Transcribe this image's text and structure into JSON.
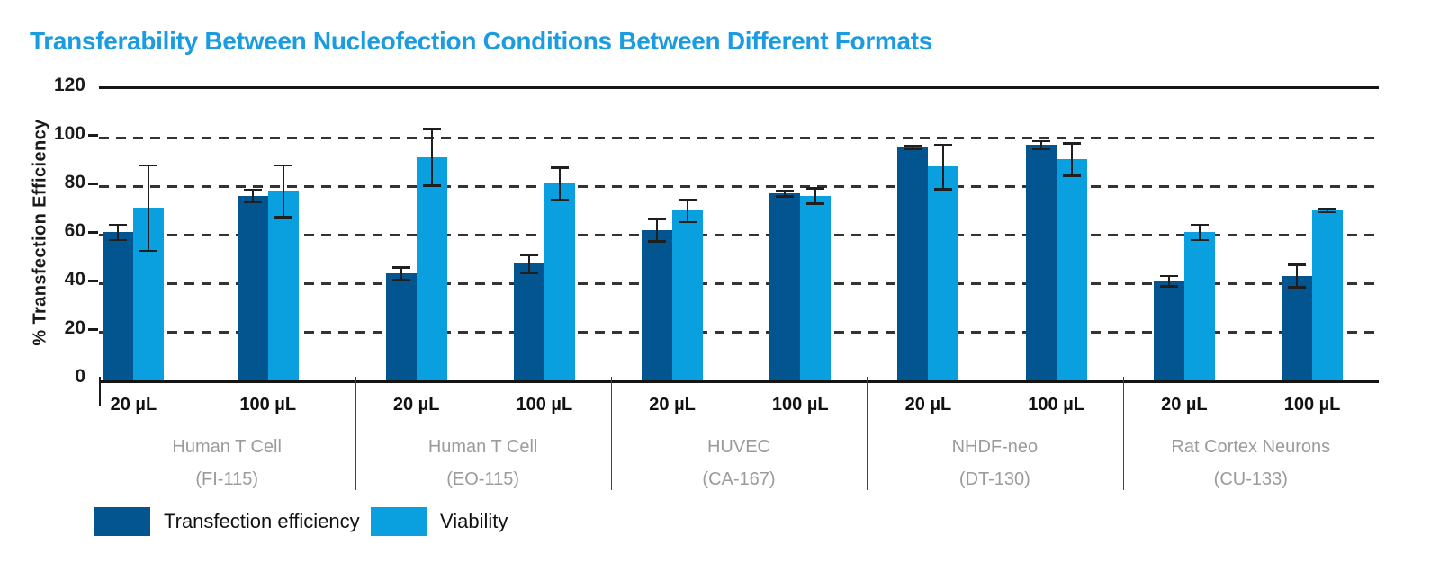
{
  "colors": {
    "title": "#1B9CE0",
    "efficiency": "#02558E",
    "viability": "#0AA0E0",
    "axis": "#141414",
    "grid": "#333333",
    "group_label": "#9B9B9B"
  },
  "chart_data": {
    "type": "bar",
    "title": "Transferability Between Nucleofection Conditions Between Different Formats",
    "ylabel": "% Transfection Efficiency",
    "xlabel": "",
    "ylim": [
      0,
      120
    ],
    "yticks": [
      0,
      20,
      40,
      60,
      80,
      100,
      120
    ],
    "grid": "horizontal-dashed",
    "error_bars": true,
    "legend": {
      "position": "bottom-left",
      "entries": [
        {
          "label": "Transfection efficiency",
          "color": "#02558E",
          "series_key": "efficiency"
        },
        {
          "label": "Viability",
          "color": "#0AA0E0",
          "series_key": "viability"
        }
      ]
    },
    "groups": [
      {
        "label": "Human T Cell",
        "code": "(FI-115)",
        "conditions": [
          {
            "label": "20 µL",
            "efficiency": {
              "value": 61,
              "err": 3.5
            },
            "viability": {
              "value": 71,
              "err": 18
            }
          },
          {
            "label": "100 µL",
            "efficiency": {
              "value": 76,
              "err": 3
            },
            "viability": {
              "value": 78,
              "err": 11
            }
          }
        ]
      },
      {
        "label": "Human T Cell",
        "code": "(EO-115)",
        "conditions": [
          {
            "label": "20 µL",
            "efficiency": {
              "value": 44,
              "err": 3
            },
            "viability": {
              "value": 92,
              "err": 12
            }
          },
          {
            "label": "100 µL",
            "efficiency": {
              "value": 48,
              "err": 4
            },
            "viability": {
              "value": 81,
              "err": 7
            }
          }
        ]
      },
      {
        "label": "HUVEC",
        "code": "(CA-167)",
        "conditions": [
          {
            "label": "20 µL",
            "efficiency": {
              "value": 62,
              "err": 5
            },
            "viability": {
              "value": 70,
              "err": 5
            }
          },
          {
            "label": "100 µL",
            "efficiency": {
              "value": 77,
              "err": 1.5
            },
            "viability": {
              "value": 76,
              "err": 3.5
            }
          }
        ]
      },
      {
        "label": "NHDF-neo",
        "code": "(DT-130)",
        "conditions": [
          {
            "label": "20 µL",
            "efficiency": {
              "value": 96,
              "err": 1
            },
            "viability": {
              "value": 88,
              "err": 9.5
            }
          },
          {
            "label": "100 µL",
            "efficiency": {
              "value": 97,
              "err": 2
            },
            "viability": {
              "value": 91,
              "err": 7
            }
          }
        ]
      },
      {
        "label": "Rat Cortex Neurons",
        "code": "(CU-133)",
        "conditions": [
          {
            "label": "20 µL",
            "efficiency": {
              "value": 41,
              "err": 2.5
            },
            "viability": {
              "value": 61,
              "err": 3.5
            }
          },
          {
            "label": "100 µL",
            "efficiency": {
              "value": 43,
              "err": 5
            },
            "viability": {
              "value": 70,
              "err": 1
            }
          }
        ]
      }
    ]
  }
}
